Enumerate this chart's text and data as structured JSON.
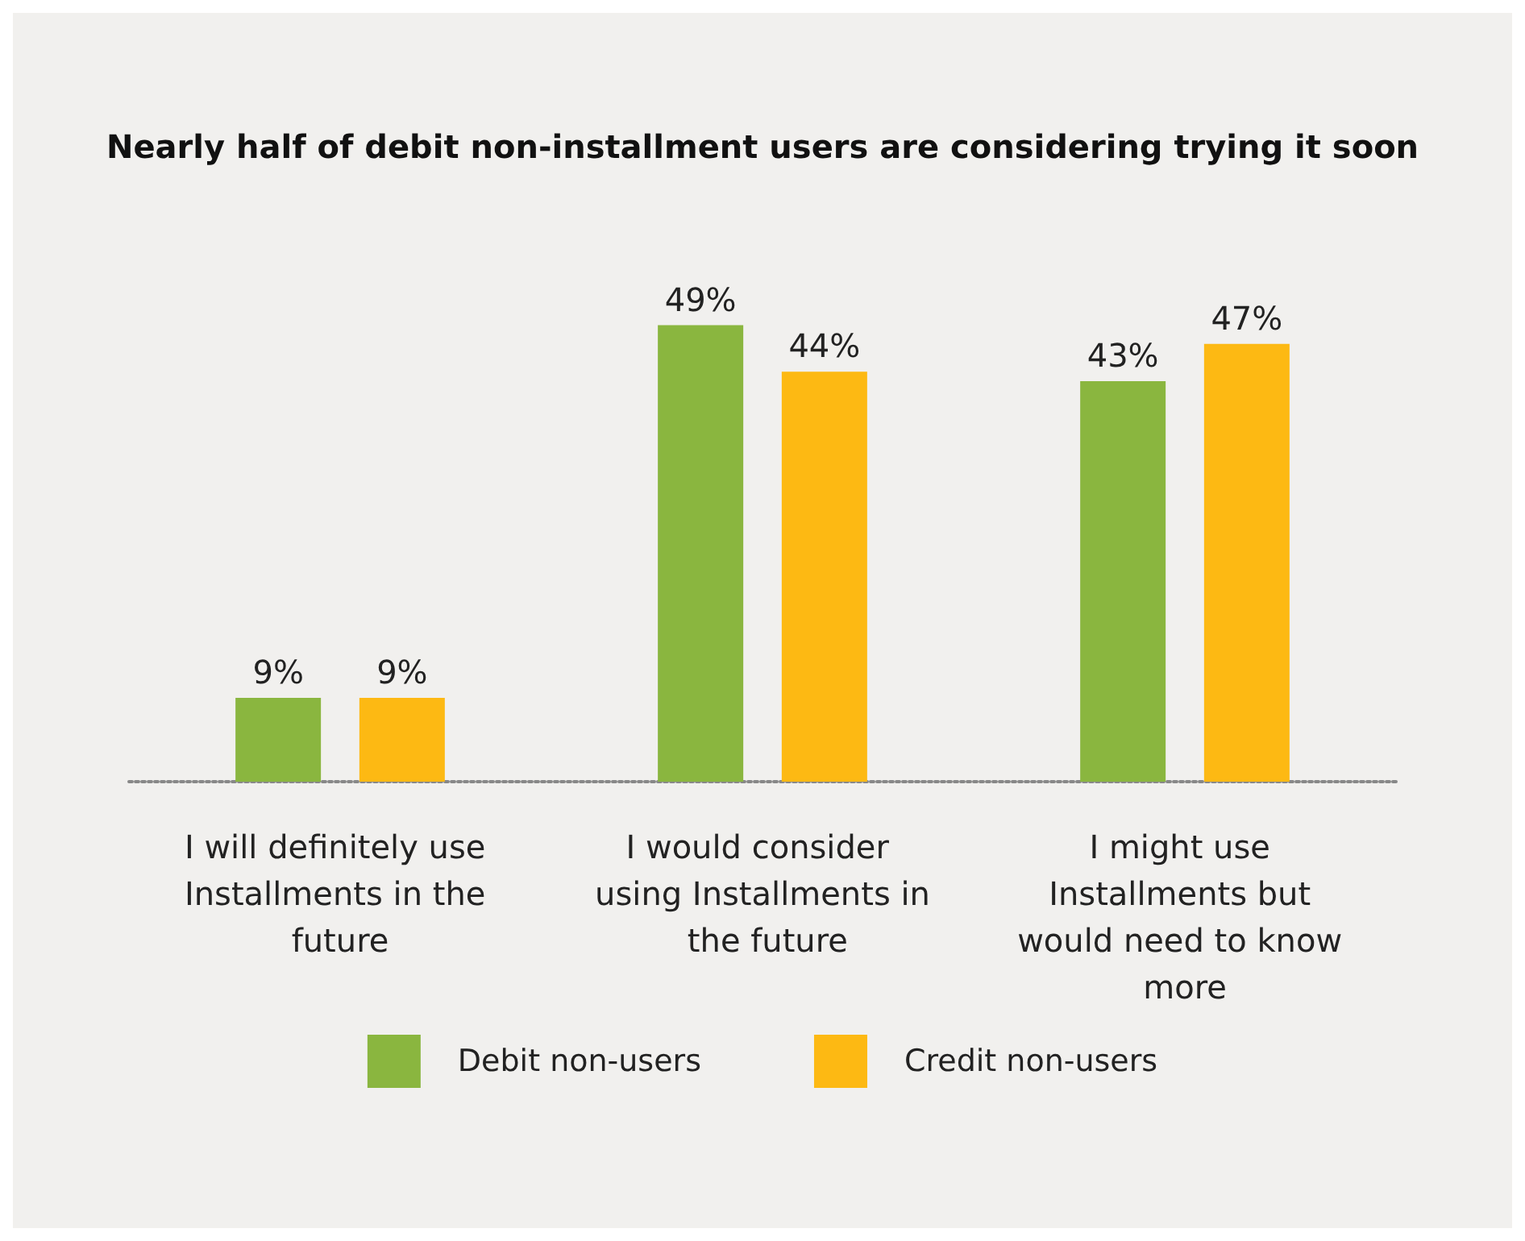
{
  "chart_data": {
    "type": "bar",
    "title": "Nearly half of debit non-installment users are considering trying it soon",
    "categories": [
      "I will definitely use Installments in the future",
      "I would consider using Installments in the future",
      "I might use Installments but would need to know more"
    ],
    "series": [
      {
        "name": "Debit non-users",
        "color": "#8ab63f",
        "values": [
          9,
          49,
          43
        ],
        "value_labels": [
          "9%",
          "49%",
          "43%"
        ]
      },
      {
        "name": "Credit non-users",
        "color": "#fdb913",
        "values": [
          9,
          44,
          47
        ],
        "value_labels": [
          "9%",
          "44%",
          "47%"
        ]
      }
    ],
    "legend": "bottom",
    "grid": false
  }
}
